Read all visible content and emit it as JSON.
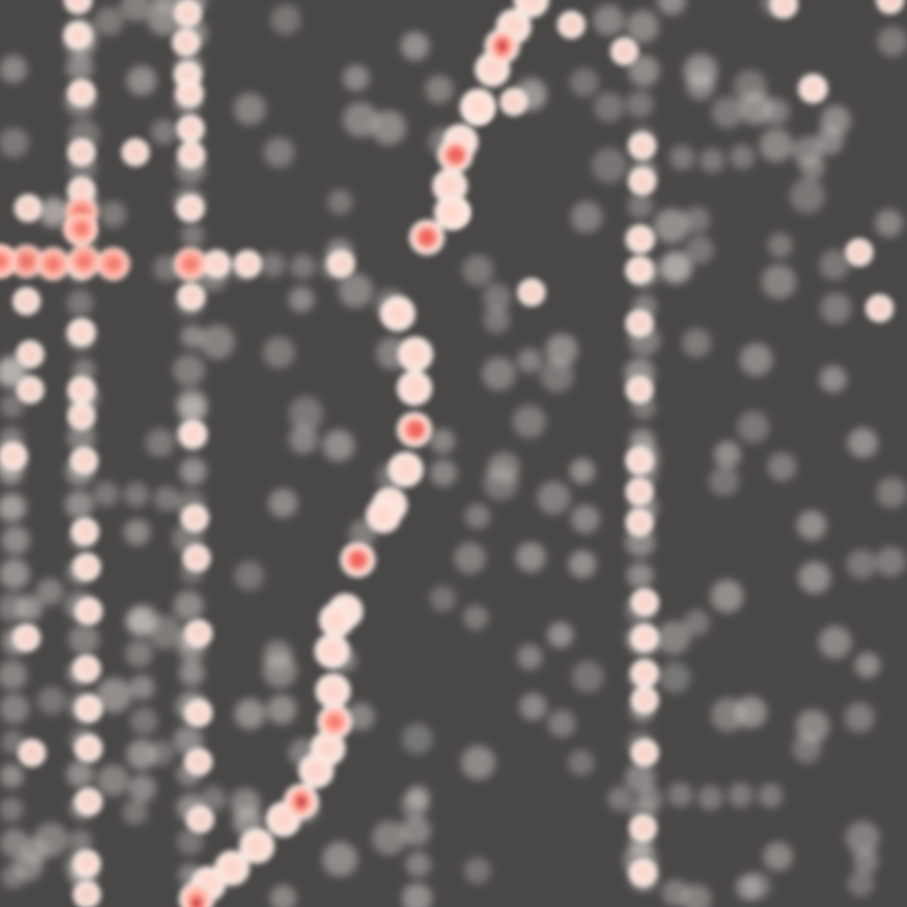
{
  "map": {
    "style": "heatmap",
    "background_color": "#4a4847",
    "ramp": [
      {
        "t": 0.0,
        "color": "#e9e4e1"
      },
      {
        "t": 0.35,
        "color": "#ffd8cf"
      },
      {
        "t": 0.6,
        "color": "#ff9f8f"
      },
      {
        "t": 0.8,
        "color": "#ec5d58"
      },
      {
        "t": 1.0,
        "color": "#7a1e3a"
      }
    ],
    "layers": {
      "faint": "background-activity",
      "light": "secondary-streets",
      "hot": "primary-corridor"
    }
  }
}
